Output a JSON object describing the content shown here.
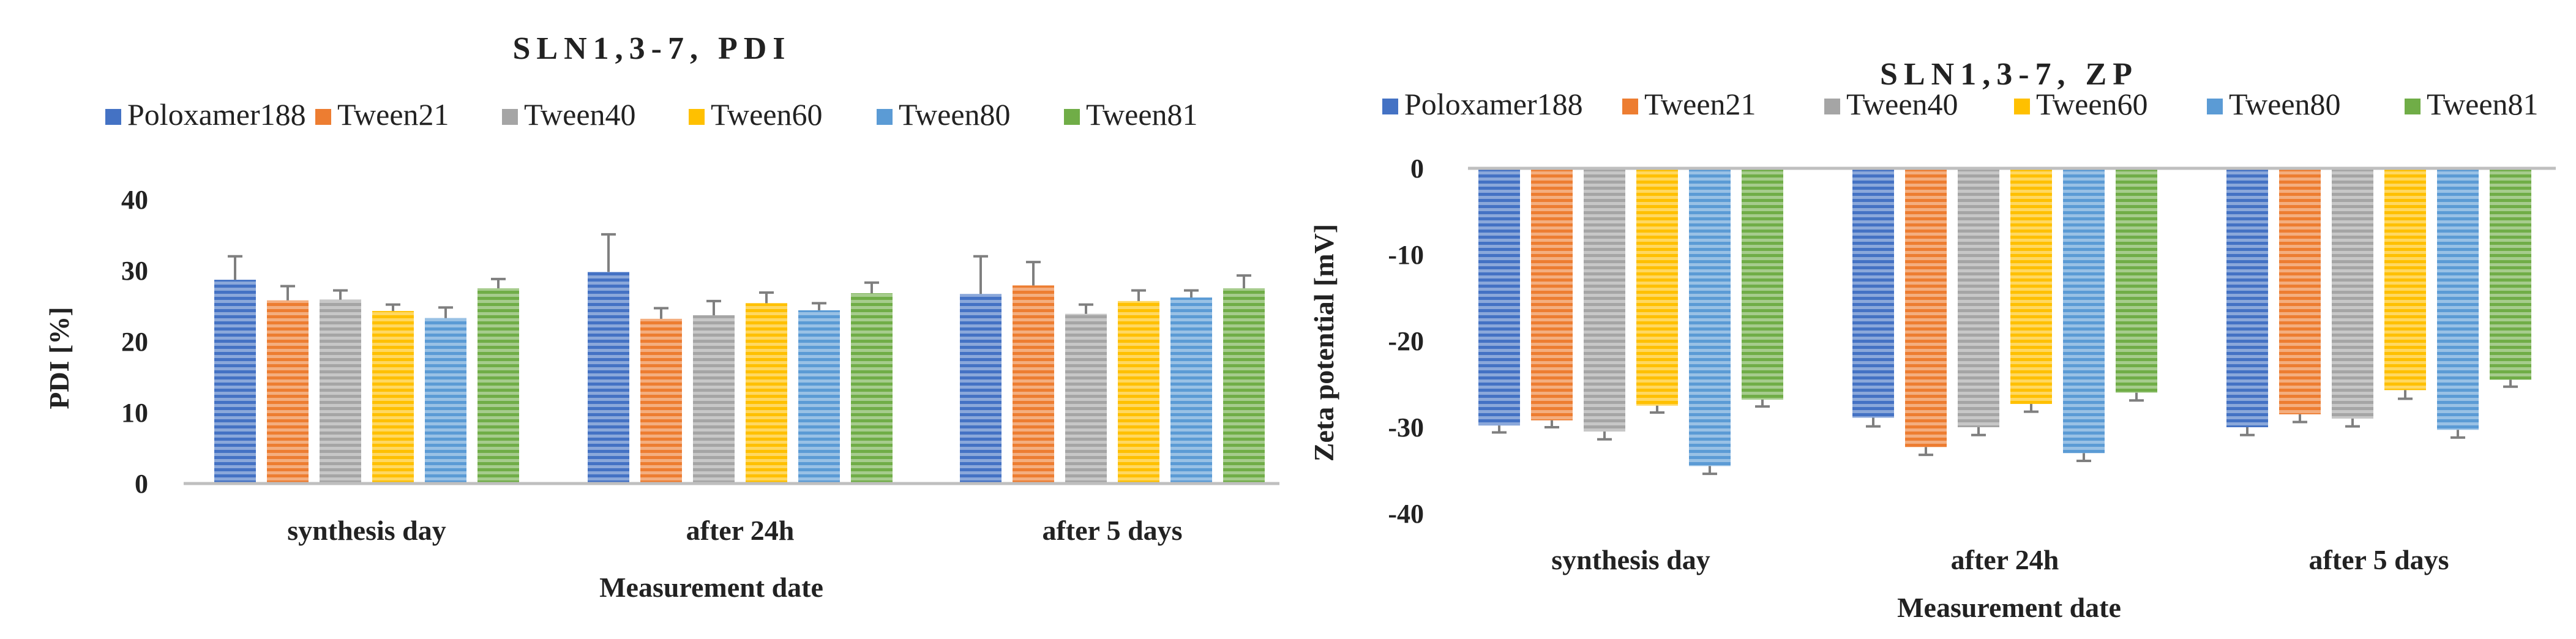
{
  "chart_data": [
    {
      "type": "bar",
      "title": "SLN1,3-7, PDI",
      "xlabel": "Measurement date",
      "ylabel": "PDI [%]",
      "ylim": [
        0,
        40
      ],
      "yticks": [
        0,
        10,
        20,
        30,
        40
      ],
      "grid": false,
      "legend": "top",
      "categories": [
        "synthesis day",
        "after 24h",
        "after 5 days"
      ],
      "series": [
        {
          "name": "Poloxamer188",
          "color": "#4472C4",
          "values": [
            28.7,
            29.8,
            26.7
          ],
          "errors": [
            3.3,
            5.3,
            5.3
          ]
        },
        {
          "name": "Tween21",
          "color": "#ED7D31",
          "values": [
            25.8,
            23.2,
            27.9
          ],
          "errors": [
            2.0,
            1.5,
            3.3
          ]
        },
        {
          "name": "Tween40",
          "color": "#A5A5A5",
          "values": [
            25.9,
            23.7,
            23.9
          ],
          "errors": [
            1.3,
            2.0,
            1.3
          ]
        },
        {
          "name": "Tween60",
          "color": "#FFC000",
          "values": [
            24.3,
            25.4,
            25.7
          ],
          "errors": [
            0.9,
            1.5,
            1.5
          ]
        },
        {
          "name": "Tween80",
          "color": "#5B9BD5",
          "values": [
            23.3,
            24.4,
            26.2
          ],
          "errors": [
            1.5,
            1.0,
            1.0
          ]
        },
        {
          "name": "Tween81",
          "color": "#70AD47",
          "values": [
            27.5,
            26.8,
            27.5
          ],
          "errors": [
            1.3,
            1.5,
            1.8
          ]
        }
      ]
    },
    {
      "type": "bar",
      "title": "SLN1,3-7, ZP",
      "xlabel": "Measurement date",
      "ylabel": "Zeta potential [mV]",
      "ylim": [
        -40,
        0
      ],
      "yticks": [
        0,
        -10,
        -20,
        -30,
        -40
      ],
      "grid": false,
      "legend": "top",
      "categories": [
        "synthesis day",
        "after 24h",
        "after 5 days"
      ],
      "series": [
        {
          "name": "Poloxamer188",
          "color": "#4472C4",
          "values": [
            -29.8,
            -28.9,
            -30.0
          ],
          "errors": [
            0.8,
            1.0,
            0.9
          ]
        },
        {
          "name": "Tween21",
          "color": "#ED7D31",
          "values": [
            -29.2,
            -32.3,
            -28.5
          ],
          "errors": [
            0.8,
            0.9,
            0.9
          ]
        },
        {
          "name": "Tween40",
          "color": "#A5A5A5",
          "values": [
            -30.5,
            -30.0,
            -29.0
          ],
          "errors": [
            0.9,
            0.9,
            0.9
          ]
        },
        {
          "name": "Tween60",
          "color": "#FFC000",
          "values": [
            -27.5,
            -27.3,
            -25.7
          ],
          "errors": [
            0.8,
            0.9,
            1.0
          ]
        },
        {
          "name": "Tween80",
          "color": "#5B9BD5",
          "values": [
            -34.5,
            -33.0,
            -30.3
          ],
          "errors": [
            0.9,
            0.9,
            0.9
          ]
        },
        {
          "name": "Tween81",
          "color": "#70AD47",
          "values": [
            -26.8,
            -26.0,
            -24.5
          ],
          "errors": [
            0.8,
            0.9,
            0.8
          ]
        }
      ]
    }
  ]
}
